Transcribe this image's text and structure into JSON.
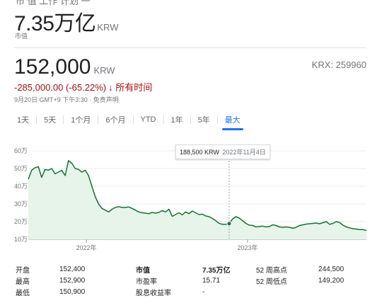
{
  "header": {
    "cut_top_text": "市 值 工作 计划 一",
    "market_cap_value": "7.35万亿",
    "market_cap_currency": "KRW",
    "market_cap_label": "市值"
  },
  "quote": {
    "price": "152,000",
    "currency": "KRW",
    "ticker": "KRX: 259960",
    "change": "-285,000.00 (-65.22%)",
    "period": "所有时间",
    "timestamp": "9月20日 GMT+9 下午3:30 · 免责声明"
  },
  "tabs": [
    {
      "label": "1天"
    },
    {
      "label": "5天"
    },
    {
      "label": "1个月"
    },
    {
      "label": "6个月"
    },
    {
      "label": "YTD"
    },
    {
      "label": "1年"
    },
    {
      "label": "5年"
    },
    {
      "label": "最大"
    }
  ],
  "active_tab": 7,
  "tooltip": {
    "price": "188,500 KRW",
    "date": "2022年11月4日"
  },
  "chart_data": {
    "type": "line",
    "ylabels": [
      "60万",
      "50万",
      "40万",
      "30万",
      "20万",
      "10万"
    ],
    "yticks": [
      600000,
      500000,
      400000,
      300000,
      200000,
      100000
    ],
    "xlabels": [
      "2022年",
      "2023年"
    ],
    "ylim": [
      100000,
      600000
    ],
    "color": "#137333",
    "fill": "#e6f4ea",
    "series": [
      {
        "values": [
          440000,
          490000,
          505000,
          510000,
          450000,
          495000,
          490000,
          500000,
          470000,
          480000,
          490000,
          460000,
          545000,
          530000,
          500000,
          495000,
          480000,
          490000,
          460000,
          400000,
          340000,
          300000,
          275000,
          265000,
          255000,
          270000,
          280000,
          285000,
          280000,
          280000,
          283000,
          275000,
          265000,
          255000,
          250000,
          248000,
          245000,
          252000,
          248000,
          252000,
          262000,
          255000,
          270000,
          230000,
          240000,
          250000,
          238000,
          255000,
          245000,
          260000,
          250000,
          240000,
          242000,
          232000,
          228000,
          218000,
          205000,
          190000,
          185000,
          185000,
          188500,
          215000,
          228000,
          220000,
          205000,
          190000,
          180000,
          178000,
          170000,
          172000,
          175000,
          170000,
          172000,
          182000,
          178000,
          170000,
          168000,
          170000,
          168000,
          162000,
          168000,
          178000,
          182000,
          186000,
          188000,
          190000,
          192000,
          188000,
          194000,
          200000,
          185000,
          190000,
          200000,
          195000,
          180000,
          170000,
          165000,
          160000,
          158000,
          155000,
          155000,
          150000
        ]
      }
    ],
    "highlight_index": 60
  },
  "stats": {
    "open_label": "开盘",
    "open": "152,400",
    "high_label": "最高",
    "high": "152,900",
    "low_label": "最低",
    "low": "150,900",
    "mcap_label": "市值",
    "mcap": "7.35万亿",
    "pe_label": "市盈率",
    "pe": "15.71",
    "div_label": "股息收益率",
    "div": "-",
    "high52_label": "52 周高点",
    "high52": "244,500",
    "low52_label": "52 周低点",
    "low52": "149,200"
  }
}
